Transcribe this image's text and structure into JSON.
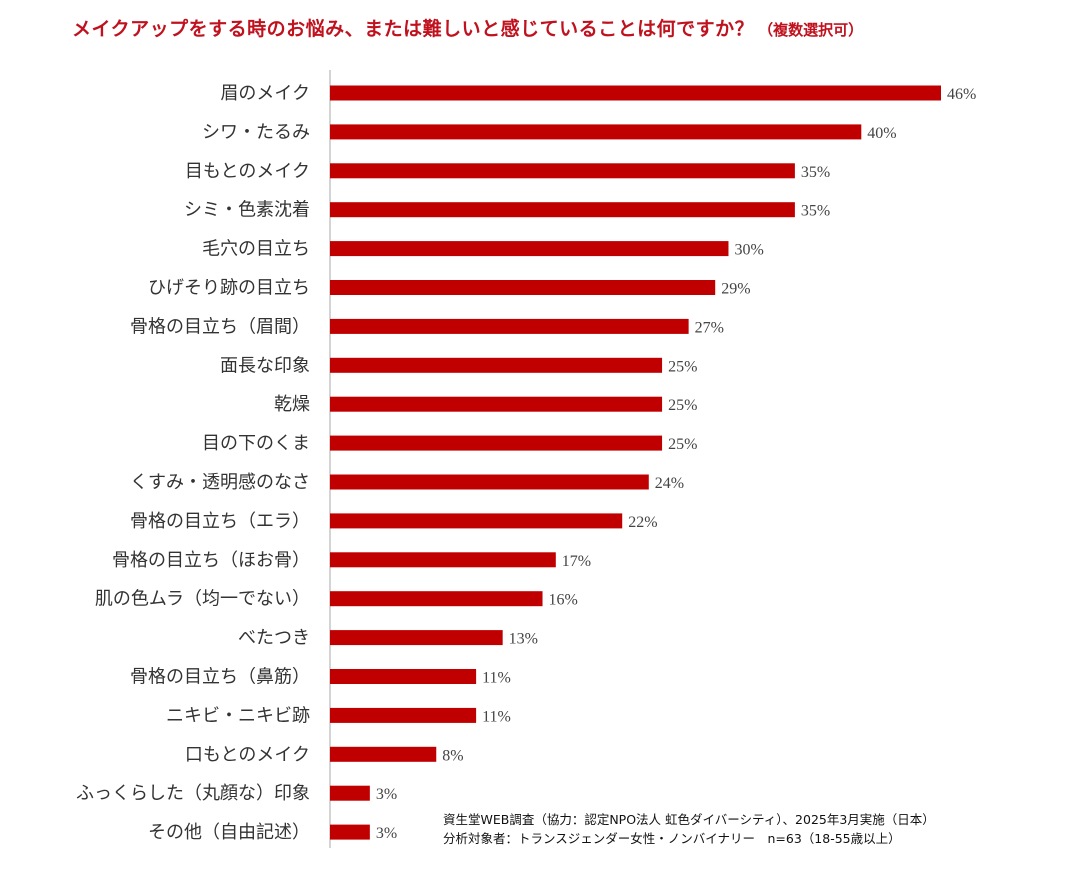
{
  "title": "メイクアップをする時のお悩み、または難しいと感じていることは何ですか？",
  "title_note": "（複数選択可）",
  "footnote_line1": "資生堂WEB調査（協力：認定NPO法人 虹色ダイバーシティ）、2025年3月実施（日本）",
  "footnote_line2": "分析対象者：トランスジェンダー女性・ノンバイナリー　n=63（18-55歳以上）",
  "colors": {
    "bar": "#c00000",
    "title": "#c0121e",
    "axis": "#aaaaaa"
  },
  "chart_data": {
    "type": "bar",
    "orientation": "horizontal",
    "title": "メイクアップをする時のお悩み、または難しいと感じていることは何ですか？",
    "unit": "%",
    "xlim": [
      0,
      46
    ],
    "categories": [
      "眉のメイク",
      "シワ・たるみ",
      "目もとのメイク",
      "シミ・色素沈着",
      "毛穴の目立ち",
      "ひげそり跡の目立ち",
      "骨格の目立ち（眉間）",
      "面長な印象",
      "乾燥",
      "目の下のくま",
      "くすみ・透明感のなさ",
      "骨格の目立ち（エラ）",
      "骨格の目立ち（ほお骨）",
      "肌の色ムラ（均一でない）",
      "べたつき",
      "骨格の目立ち（鼻筋）",
      "ニキビ・ニキビ跡",
      "口もとのメイク",
      "ふっくらした（丸顔な）印象",
      "その他（自由記述）"
    ],
    "values": [
      46,
      40,
      35,
      35,
      30,
      29,
      27,
      25,
      25,
      25,
      24,
      22,
      17,
      16,
      13,
      11,
      11,
      8,
      3,
      3
    ],
    "value_labels": [
      "46%",
      "40%",
      "35%",
      "35%",
      "30%",
      "29%",
      "27%",
      "25%",
      "25%",
      "25%",
      "24%",
      "22%",
      "17%",
      "16%",
      "13%",
      "11%",
      "11%",
      "8%",
      "3%",
      "3%"
    ]
  }
}
